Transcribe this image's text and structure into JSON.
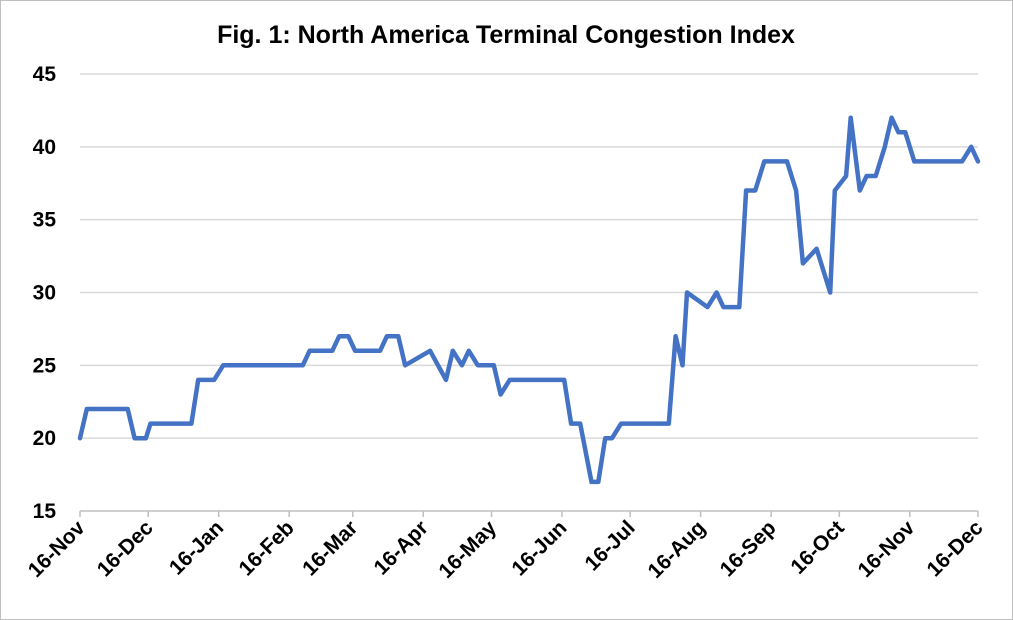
{
  "chart_data": {
    "type": "line",
    "title": "Fig. 1: North America Terminal Congestion Index",
    "xlabel": "",
    "ylabel": "",
    "ylim": [
      15,
      45
    ],
    "yticks": [
      15,
      20,
      25,
      30,
      35,
      40,
      45
    ],
    "x_unit": "days since 16-Nov",
    "xlim": [
      0,
      395
    ],
    "xtick_days": [
      0,
      30,
      61,
      92,
      120,
      151,
      181,
      212,
      242,
      273,
      304,
      334,
      365,
      395
    ],
    "xtick_labels": [
      "16-Nov",
      "16-Dec",
      "16-Jan",
      "16-Feb",
      "16-Mar",
      "16-Apr",
      "16-May",
      "16-Jun",
      "16-Jul",
      "16-Aug",
      "16-Sep",
      "16-Oct",
      "16-Nov",
      "16-Dec"
    ],
    "grid": true,
    "legend": "none",
    "series": [
      {
        "name": "Congestion Index",
        "color": "#4472C4",
        "x": [
          0,
          3,
          21,
          24,
          29,
          31,
          49,
          52,
          59,
          63,
          98,
          101,
          111,
          114,
          118,
          121,
          132,
          135,
          140,
          143,
          154,
          161,
          164,
          168,
          171,
          175,
          182,
          185,
          189,
          213,
          216,
          220,
          225,
          228,
          231,
          234,
          238,
          259,
          262,
          265,
          267,
          276,
          280,
          283,
          290,
          293,
          297,
          301,
          311,
          315,
          318,
          324,
          330,
          332,
          337,
          339,
          343,
          346,
          350,
          354,
          357,
          360,
          363,
          367,
          388,
          392,
          395
        ],
        "y": [
          20,
          22,
          22,
          20,
          20,
          21,
          21,
          24,
          24,
          25,
          25,
          26,
          26,
          27,
          27,
          26,
          26,
          27,
          27,
          25,
          26,
          24,
          26,
          25,
          26,
          25,
          25,
          23,
          24,
          24,
          21,
          21,
          17,
          17,
          20,
          20,
          21,
          21,
          27,
          25,
          30,
          29,
          30,
          29,
          29,
          37,
          37,
          39,
          39,
          37,
          32,
          33,
          30,
          37,
          38,
          42,
          37,
          38,
          38,
          40,
          42,
          41,
          41,
          39,
          39,
          40,
          39
        ]
      }
    ]
  }
}
